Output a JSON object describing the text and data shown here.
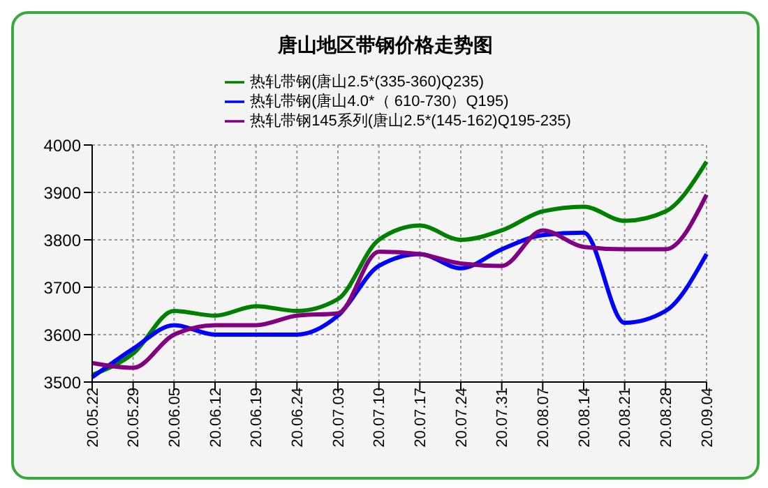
{
  "chart_data": {
    "type": "line",
    "title": "唐山地区带钢价格走势图",
    "categories": [
      "20.05.22",
      "20.05.29",
      "20.06.05",
      "20.06.12",
      "20.06.19",
      "20.06.24",
      "20.07.03",
      "20.07.10",
      "20.07.17",
      "20.07.24",
      "20.07.31",
      "20.08.07",
      "20.08.14",
      "20.08.21",
      "20.08.28",
      "20.09.04"
    ],
    "series": [
      {
        "name": "热轧带钢(唐山2.5*(335-360)Q235)",
        "color": "#008000",
        "values": [
          3515,
          3560,
          3650,
          3640,
          3660,
          3650,
          3675,
          3800,
          3830,
          3800,
          3820,
          3860,
          3870,
          3840,
          3860,
          3965
        ]
      },
      {
        "name": "热轧带钢(唐山4.0*（ 610-730）Q195)",
        "color": "#0000ff",
        "values": [
          3510,
          3570,
          3620,
          3600,
          3600,
          3600,
          3640,
          3745,
          3770,
          3740,
          3780,
          3810,
          3815,
          3625,
          3650,
          3770
        ]
      },
      {
        "name": "热轧带钢145系列(唐山2.5*(145-162)Q195-235)",
        "color": "#800080",
        "values": [
          3540,
          3530,
          3600,
          3620,
          3620,
          3640,
          3645,
          3775,
          3770,
          3750,
          3745,
          3820,
          3785,
          3780,
          3780,
          3895
        ]
      }
    ],
    "ylim": [
      3500,
      4000
    ],
    "yticks": [
      3500,
      3600,
      3700,
      3800,
      3900,
      4000
    ],
    "grid": true,
    "legend": "top",
    "marker": "none",
    "line_style": "solid"
  }
}
